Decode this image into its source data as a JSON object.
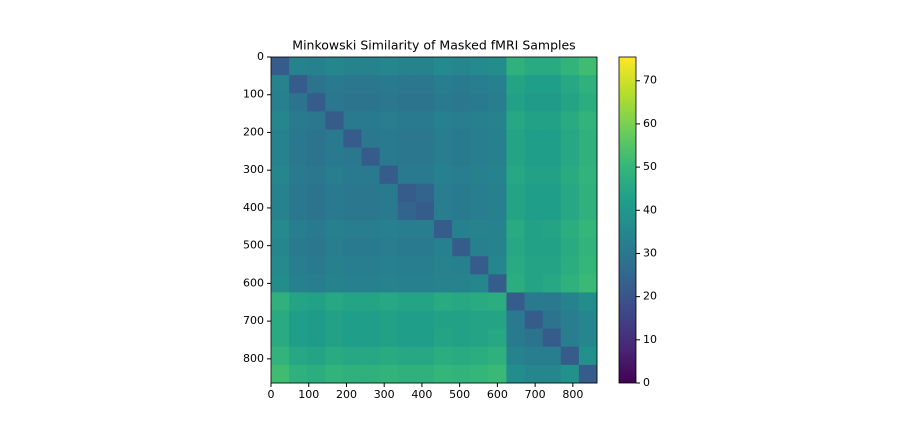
{
  "chart_data": {
    "type": "heatmap",
    "title": "Minkowski Similarity of Masked fMRI Samples",
    "colormap": "viridis",
    "xbins": [
      0,
      48,
      96,
      144,
      192,
      240,
      288,
      336,
      384,
      432,
      480,
      528,
      576,
      624,
      672,
      720,
      768,
      816,
      864
    ],
    "ybins": [
      0,
      48,
      96,
      144,
      192,
      240,
      288,
      336,
      384,
      432,
      480,
      528,
      576,
      624,
      672,
      720,
      768,
      816,
      864
    ],
    "xlim": [
      0,
      864
    ],
    "ylim": [
      864,
      0
    ],
    "xticks": [
      0,
      100,
      200,
      300,
      400,
      500,
      600,
      700,
      800
    ],
    "yticks": [
      0,
      100,
      200,
      300,
      400,
      500,
      600,
      700,
      800
    ],
    "clim": [
      0,
      75.5
    ],
    "cticks": [
      0,
      10,
      20,
      30,
      40,
      50,
      60,
      70
    ],
    "values": [
      [
        22,
        34,
        33,
        35,
        34,
        34,
        35,
        34,
        34,
        36,
        35,
        36,
        37,
        48,
        46,
        46,
        49,
        52
      ],
      [
        34,
        22,
        29,
        31,
        30,
        30,
        31,
        30,
        30,
        32,
        31,
        32,
        33,
        44,
        42,
        42,
        45,
        48
      ],
      [
        33,
        29,
        22,
        30,
        29,
        29,
        30,
        29,
        29,
        31,
        30,
        31,
        32,
        43,
        41,
        41,
        44,
        47
      ],
      [
        35,
        31,
        30,
        22,
        31,
        31,
        32,
        31,
        31,
        33,
        32,
        33,
        34,
        45,
        43,
        43,
        46,
        49
      ],
      [
        34,
        30,
        29,
        31,
        22,
        30,
        31,
        30,
        30,
        32,
        31,
        32,
        33,
        44,
        42,
        42,
        45,
        48
      ],
      [
        34,
        30,
        29,
        31,
        30,
        22,
        31,
        30,
        30,
        32,
        31,
        32,
        33,
        44,
        42,
        42,
        45,
        48
      ],
      [
        35,
        31,
        30,
        32,
        31,
        31,
        22,
        31,
        31,
        33,
        32,
        33,
        34,
        45,
        43,
        43,
        46,
        49
      ],
      [
        34,
        30,
        29,
        31,
        30,
        30,
        31,
        22,
        24,
        32,
        31,
        32,
        33,
        44,
        42,
        42,
        45,
        48
      ],
      [
        34,
        30,
        29,
        31,
        30,
        30,
        31,
        24,
        22,
        32,
        31,
        32,
        33,
        44,
        42,
        42,
        45,
        48
      ],
      [
        36,
        32,
        31,
        33,
        32,
        32,
        33,
        32,
        32,
        22,
        33,
        34,
        34,
        46,
        43,
        44,
        47,
        50
      ],
      [
        35,
        31,
        30,
        32,
        31,
        31,
        32,
        31,
        31,
        33,
        22,
        33,
        34,
        45,
        43,
        43,
        46,
        49
      ],
      [
        36,
        32,
        31,
        33,
        32,
        32,
        33,
        32,
        32,
        34,
        33,
        22,
        35,
        46,
        44,
        44,
        47,
        50
      ],
      [
        37,
        33,
        32,
        34,
        33,
        33,
        34,
        33,
        33,
        34,
        34,
        35,
        22,
        47,
        44,
        45,
        48,
        51
      ],
      [
        48,
        44,
        43,
        45,
        44,
        44,
        45,
        44,
        44,
        46,
        45,
        46,
        47,
        22,
        31,
        31,
        34,
        37
      ],
      [
        46,
        42,
        41,
        43,
        42,
        42,
        43,
        42,
        42,
        43,
        43,
        44,
        44,
        31,
        22,
        29,
        32,
        35
      ],
      [
        46,
        42,
        41,
        43,
        42,
        42,
        43,
        42,
        42,
        44,
        43,
        44,
        45,
        31,
        29,
        22,
        32,
        35
      ],
      [
        49,
        45,
        44,
        46,
        45,
        45,
        46,
        45,
        45,
        47,
        46,
        47,
        48,
        34,
        32,
        32,
        22,
        38
      ],
      [
        52,
        48,
        47,
        49,
        48,
        48,
        49,
        48,
        48,
        50,
        49,
        50,
        51,
        37,
        35,
        35,
        38,
        22
      ]
    ]
  }
}
